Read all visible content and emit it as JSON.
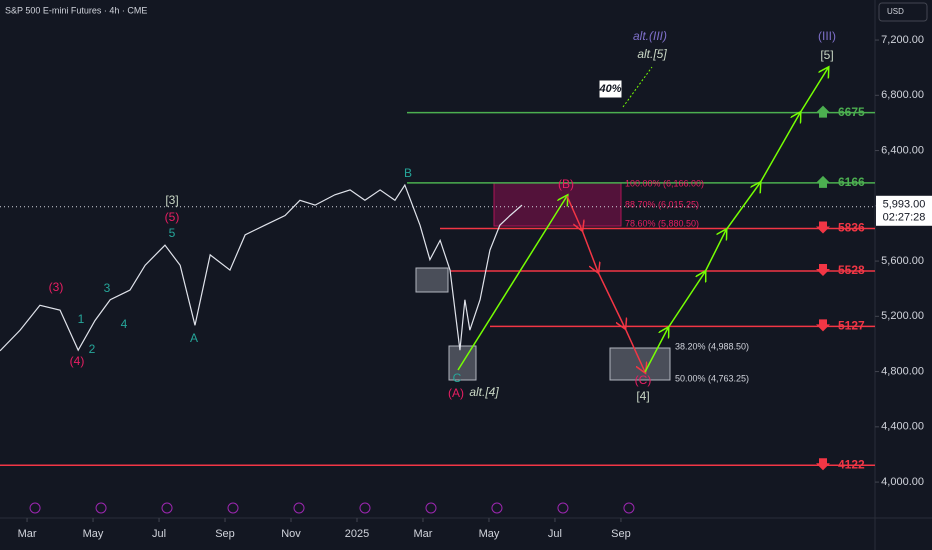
{
  "chart_data": {
    "type": "line",
    "title": "S&P 500 E-mini Futures · 4h · CME",
    "currency": "USD",
    "series": [
      {
        "color": "#e0e3eb",
        "x": [
          -0.82,
          -0.21,
          0.39,
          1.0,
          1.55,
          2.06,
          2.52,
          3.12,
          3.58,
          4.18,
          4.64,
          5.09,
          5.55,
          6.15,
          6.61,
          7.21,
          7.82,
          8.27,
          8.73,
          9.33,
          9.79,
          10.24,
          10.7,
          11.15,
          11.45,
          11.91,
          12.21,
          12.52,
          12.82,
          13.12,
          13.27,
          13.42,
          13.73,
          14.03,
          14.33,
          14.64,
          15.0
        ],
        "values": [
          4950,
          5100,
          5280,
          5245,
          4955,
          5170,
          5320,
          5390,
          5570,
          5715,
          5570,
          5135,
          5645,
          5535,
          5790,
          5860,
          5930,
          6040,
          6005,
          6080,
          6115,
          6040,
          6115,
          6040,
          6150,
          5860,
          5610,
          5750,
          5535,
          4955,
          5320,
          5100,
          5320,
          5680,
          5860,
          5930,
          6005
        ]
      }
    ],
    "xlim": [
      -0.82,
      25.7
    ],
    "xticks": [
      {
        "value": 0,
        "label": "Mar"
      },
      {
        "value": 2,
        "label": "May"
      },
      {
        "value": 4,
        "label": "Jul"
      },
      {
        "value": 6,
        "label": "Sep"
      },
      {
        "value": 8,
        "label": "Nov"
      },
      {
        "value": 10,
        "label": "2025"
      },
      {
        "value": 12,
        "label": "Mar"
      },
      {
        "value": 14,
        "label": "May"
      },
      {
        "value": 16,
        "label": "Jul"
      },
      {
        "value": 18,
        "label": "Sep"
      }
    ],
    "ylim": [
      3740,
      7490
    ],
    "yticks": [
      {
        "value": 4000,
        "label": "4,000.00"
      },
      {
        "value": 4400,
        "label": "4,400.00"
      },
      {
        "value": 4800,
        "label": "4,800.00"
      },
      {
        "value": 5200,
        "label": "5,200.00"
      },
      {
        "value": 5600,
        "label": "5,600.00"
      },
      {
        "value": 6000,
        "label": "6,000.00"
      },
      {
        "value": 6400,
        "label": "6,400.00"
      },
      {
        "value": 6800,
        "label": "6,800.00"
      },
      {
        "value": 7200,
        "label": "7,200.00"
      }
    ],
    "last_price": {
      "value": 5993,
      "label": "5,993.00"
    },
    "countdown": "02:27:28",
    "levels": [
      {
        "value": 6675,
        "color": "#4caf50"
      },
      {
        "value": 6166,
        "color": "#4caf50"
      },
      {
        "value": 5836,
        "color": "#f23645"
      },
      {
        "value": 5528,
        "color": "#f23645"
      },
      {
        "value": 5127,
        "color": "#f23645"
      },
      {
        "value": 4122,
        "color": "#f23645"
      }
    ],
    "fib_labels": [
      "100.00% (6,166.00)",
      "88.70% (6,015.25)",
      "78.60% (5,880.50)",
      "38.20% (4,988.50)",
      "50.00% (4,763.25)"
    ],
    "probability": "40%",
    "wave_labels": [
      "(3)",
      "(4)",
      "1",
      "2",
      "3",
      "4",
      "[3]",
      "(5)",
      "5",
      "A",
      "B",
      "(A)",
      "C",
      "alt.[4]",
      "(B)",
      "(C)",
      "[4]",
      "alt.(III)",
      "alt.[5]",
      "(III)",
      "[5]"
    ]
  }
}
